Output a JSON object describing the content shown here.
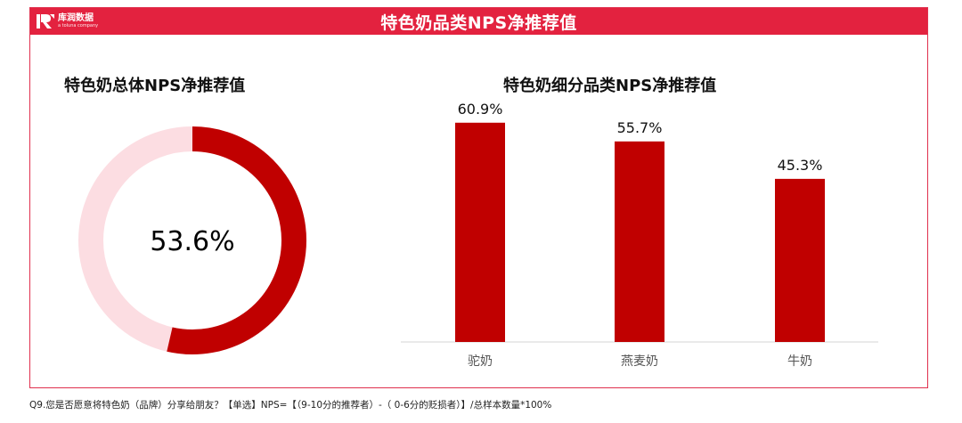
{
  "header": {
    "title": "特色奶品类NPS净推荐值"
  },
  "logo": {
    "name": "库润数据",
    "subtitle": "a toluna company",
    "icon": "kr-logo-icon"
  },
  "colors": {
    "accent": "#e3223f",
    "bar": "#c00000",
    "donut_fill": "#c00000",
    "donut_track": "#fcdde2"
  },
  "chart_data": [
    {
      "type": "pie",
      "title": "特色奶总体NPS净推荐值",
      "values": [
        53.6
      ],
      "value_label": "53.6%"
    },
    {
      "type": "bar",
      "title": "特色奶细分品类NPS净推荐值",
      "categories": [
        "驼奶",
        "燕麦奶",
        "牛奶"
      ],
      "values": [
        60.9,
        55.7,
        45.3
      ],
      "data_labels": [
        "60.9%",
        "55.7%",
        "45.3%"
      ],
      "ylim": [
        0,
        70
      ],
      "grid": false
    }
  ],
  "footnote": "Q9.您是否愿意将特色奶（品牌）分享给朋友？【单选】NPS=【（9-10分的推荐者）-（ 0-6分的贬损者）】/总样本数量*100%"
}
